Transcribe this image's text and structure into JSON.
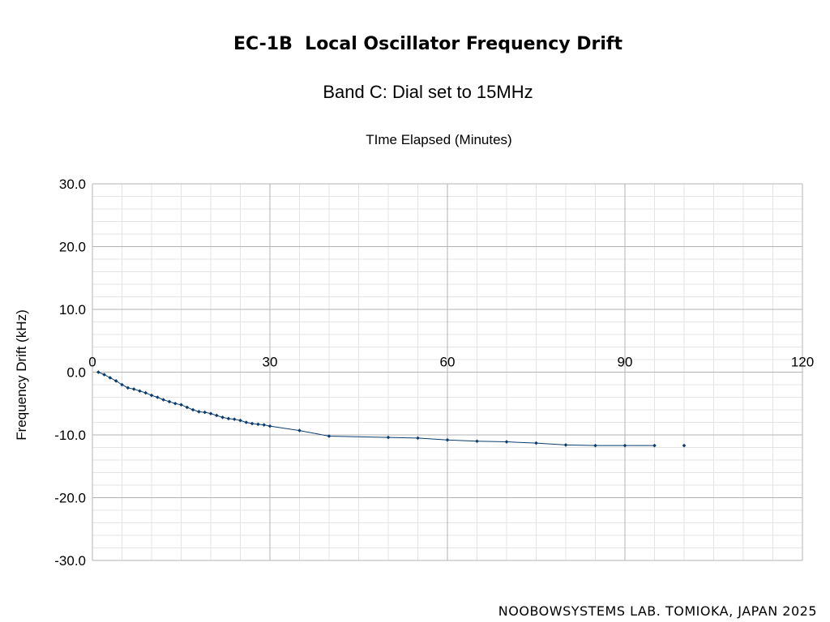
{
  "chart_data": {
    "type": "scatter",
    "title": "EC-1B  Local Oscillator Frequency Drift",
    "subtitle": "Band C: Dial set to 15MHz",
    "xlabel": "TIme Elapsed (Minutes)",
    "ylabel": "Frequency Drift (kHz)",
    "xlim": [
      0,
      120
    ],
    "ylim": [
      -30,
      30
    ],
    "x_ticks": [
      0,
      30,
      60,
      90,
      120
    ],
    "y_ticks": [
      30,
      20,
      10,
      0,
      -10,
      -20,
      -30
    ],
    "y_tick_labels": [
      "30.0",
      "20.0",
      "10.0",
      "0.0",
      "-10.0",
      "-20.0",
      "-30.0"
    ],
    "x_tick_labels": [
      "0",
      "30",
      "60",
      "90",
      "120"
    ],
    "x_axis_position": "top (at y = 0)",
    "grid": true,
    "marker_color": "#0b3c6e",
    "line_color": "#0b3c6e",
    "series": [
      {
        "x": [
          1,
          2,
          3,
          4,
          5,
          6,
          7,
          8,
          9,
          10,
          11,
          12,
          13,
          14,
          15,
          16,
          17,
          18,
          19,
          20,
          21,
          22,
          23,
          24,
          25,
          26,
          27,
          28,
          29,
          30,
          35,
          40,
          50,
          55,
          60,
          65,
          70,
          75,
          80,
          85,
          90,
          95
        ],
        "y": [
          0.0,
          -0.4,
          -0.9,
          -1.4,
          -2.0,
          -2.5,
          -2.7,
          -3.0,
          -3.3,
          -3.7,
          -4.0,
          -4.4,
          -4.7,
          -5.0,
          -5.2,
          -5.6,
          -6.0,
          -6.3,
          -6.4,
          -6.6,
          -6.9,
          -7.2,
          -7.4,
          -7.5,
          -7.7,
          -8.0,
          -8.2,
          -8.3,
          -8.4,
          -8.6,
          -9.3,
          -10.2,
          -10.4,
          -10.5,
          -10.8,
          -11.0,
          -11.1,
          -11.3,
          -11.6,
          -11.7,
          -11.7,
          -11.7
        ]
      },
      {
        "x": [
          100
        ],
        "y": [
          -11.7
        ]
      }
    ]
  },
  "footer": "NOOBOWSYSTEMS LAB. TOMIOKA, JAPAN 2025"
}
